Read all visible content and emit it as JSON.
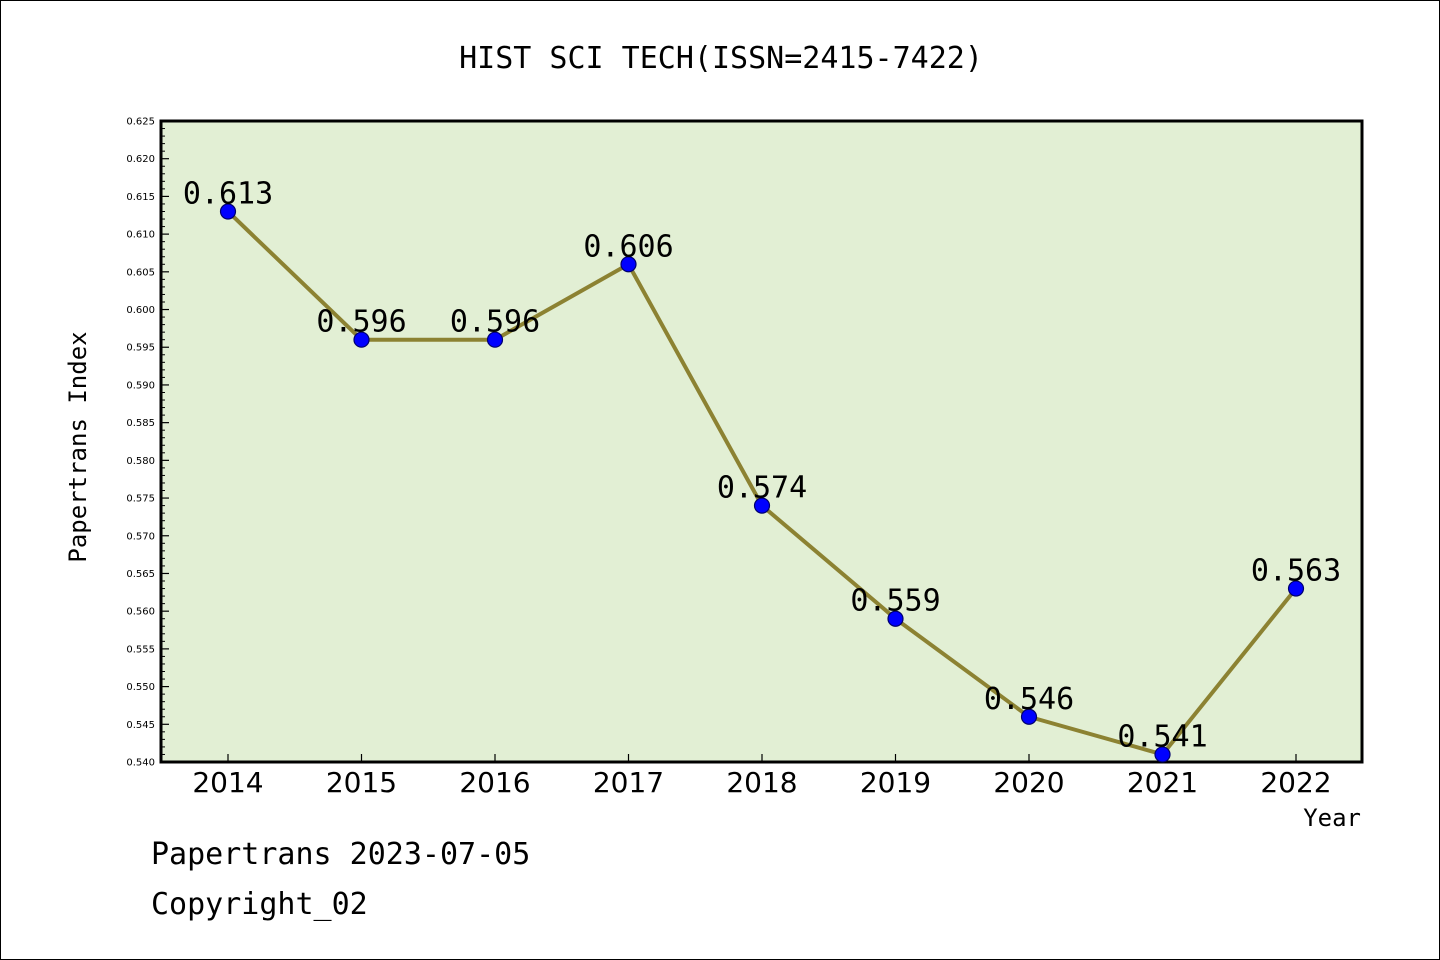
{
  "chart_data": {
    "type": "line",
    "title": "HIST SCI TECH(ISSN=2415-7422)",
    "xlabel": "Year",
    "ylabel": "Papertrans Index",
    "categories": [
      "2014",
      "2015",
      "2016",
      "2017",
      "2018",
      "2019",
      "2020",
      "2021",
      "2022"
    ],
    "values": [
      0.613,
      0.596,
      0.596,
      0.606,
      0.574,
      0.559,
      0.546,
      0.541,
      0.563
    ],
    "data_labels": [
      "0.613",
      "0.596",
      "0.596",
      "0.606",
      "0.574",
      "0.559",
      "0.546",
      "0.541",
      "0.563"
    ],
    "ylim": [
      0.54,
      0.625
    ],
    "y_ticks": [
      "0.540",
      "0.545",
      "0.550",
      "0.555",
      "0.560",
      "0.565",
      "0.570",
      "0.575",
      "0.580",
      "0.585",
      "0.590",
      "0.595",
      "0.600",
      "0.605",
      "0.610",
      "0.615",
      "0.620",
      "0.625"
    ],
    "grid": false,
    "colors": {
      "plot_background": "#e2efd4",
      "line": "#8c8232",
      "marker": "#0000ff"
    }
  },
  "footer": {
    "source": "Papertrans 2023-07-05",
    "copyright": "Copyright_02"
  }
}
